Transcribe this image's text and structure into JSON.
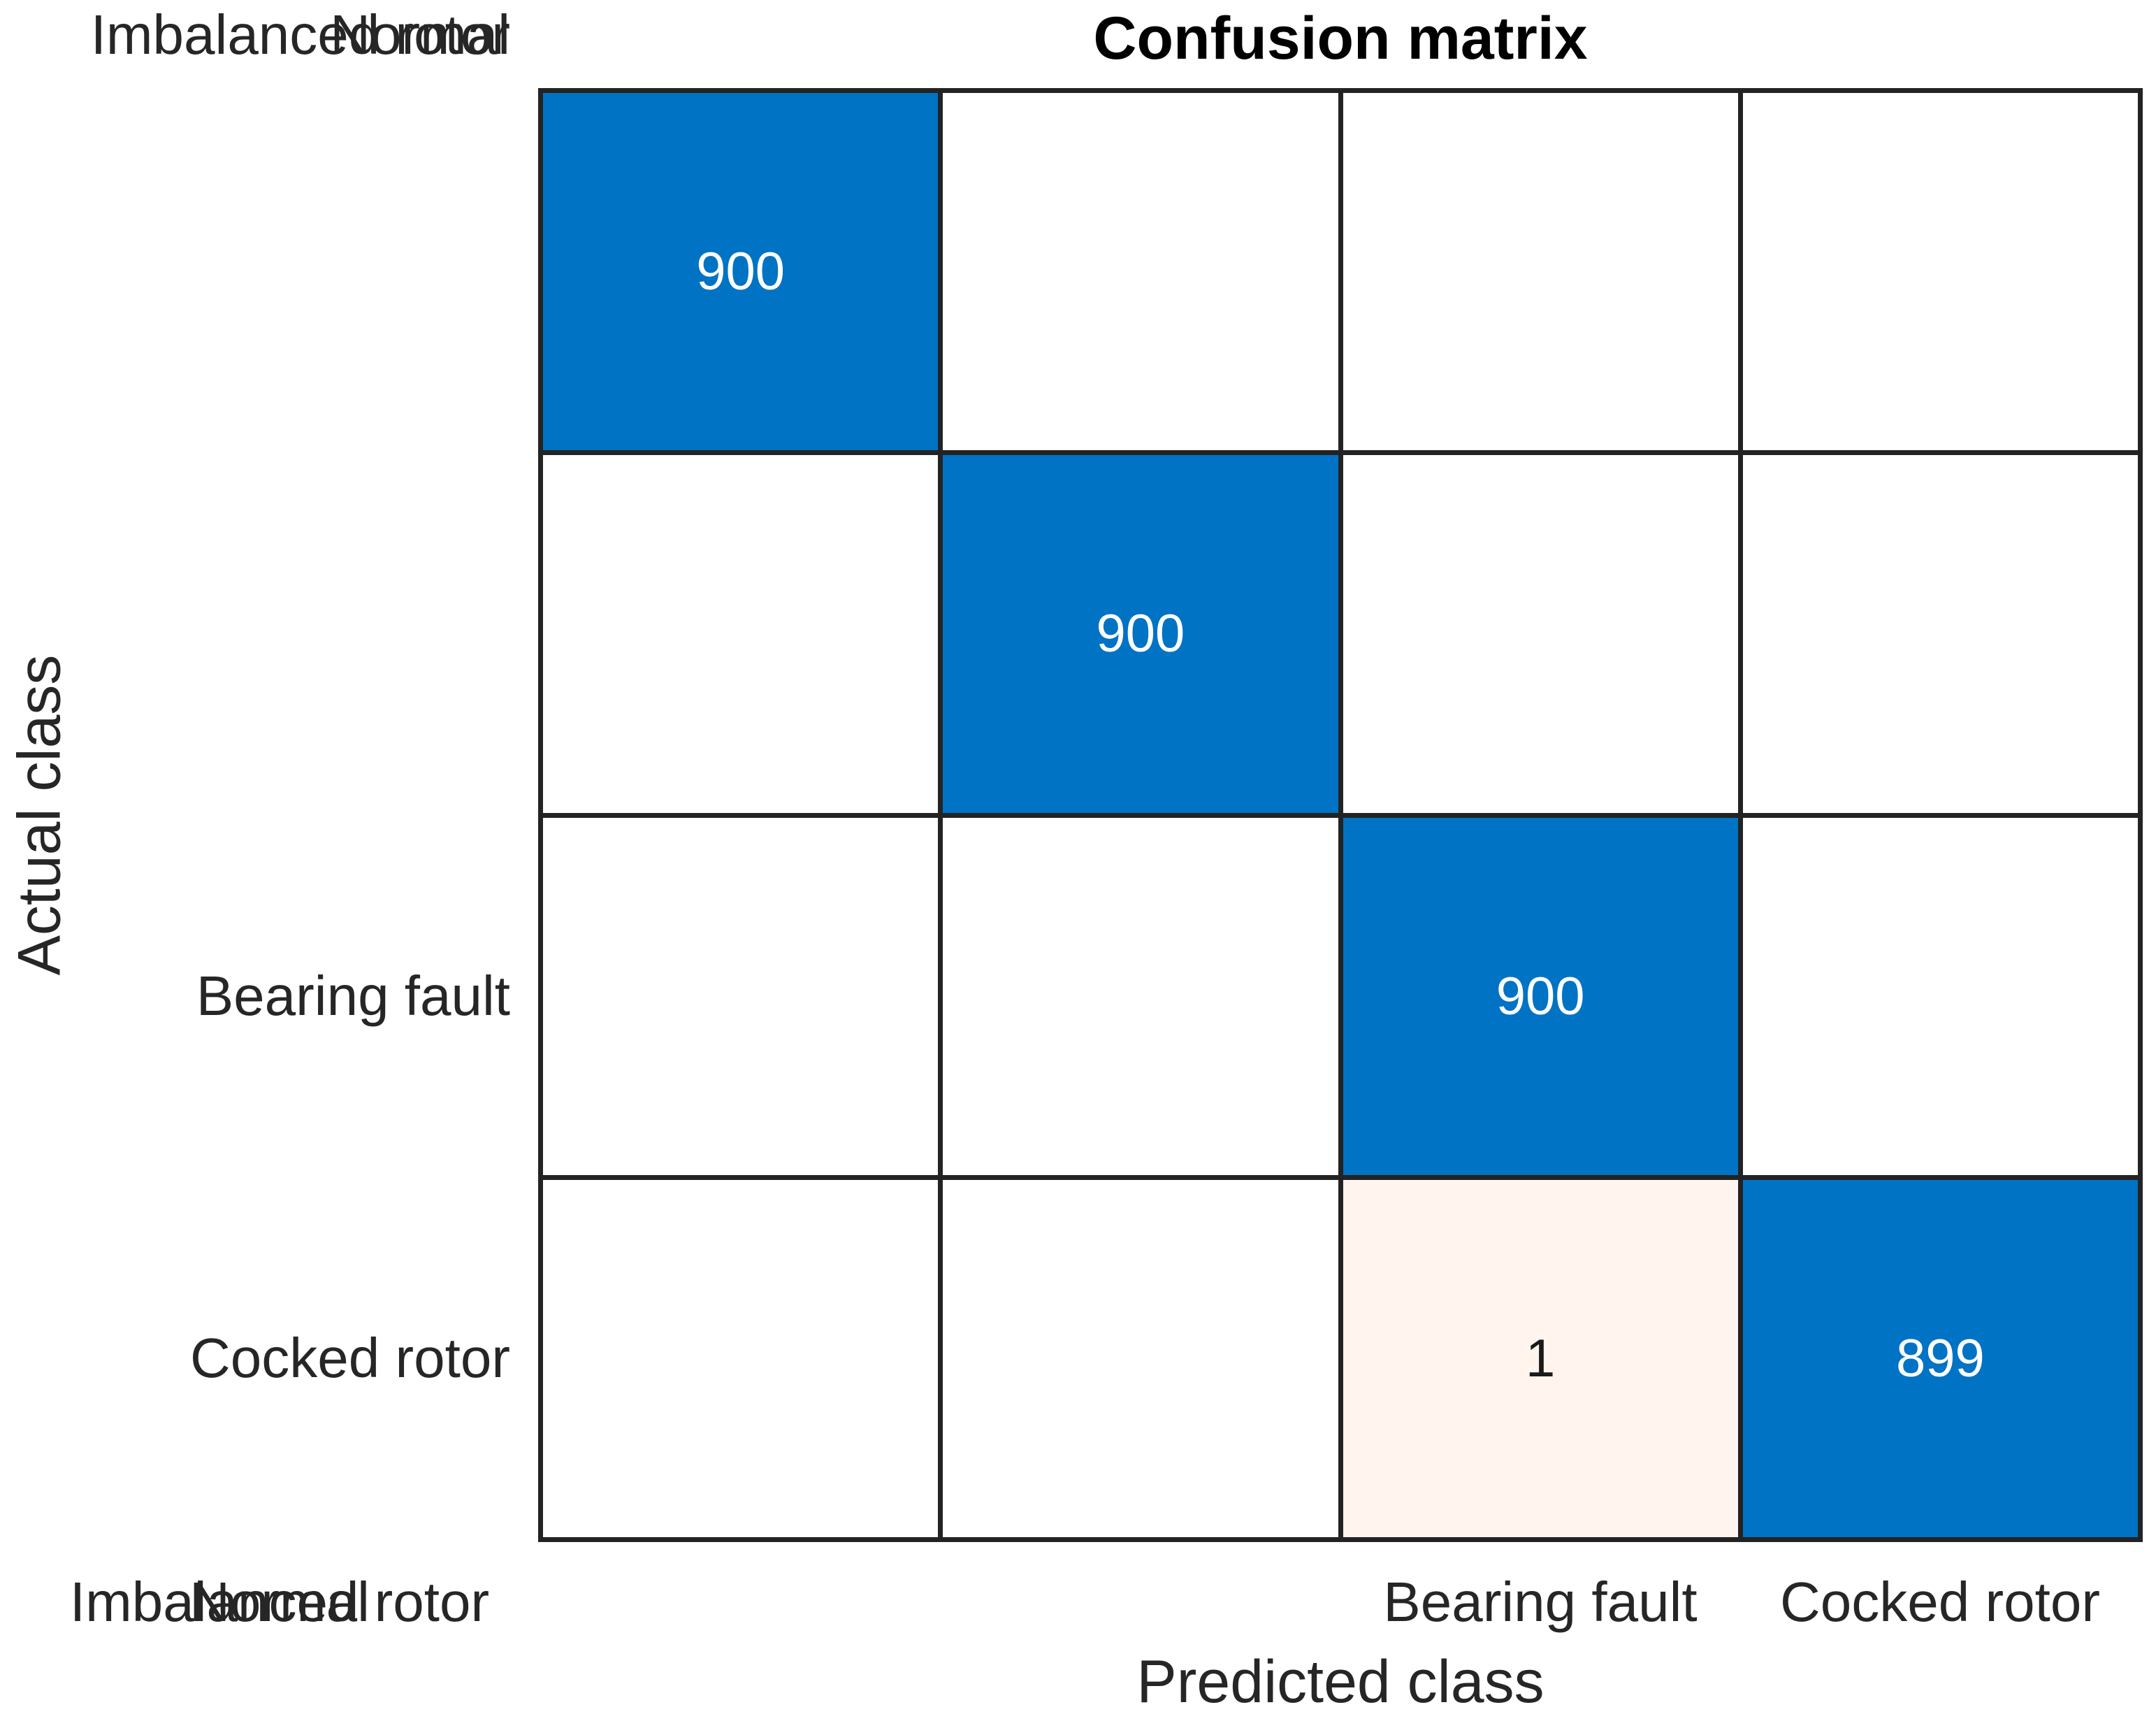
{
  "title": "Confusion matrix",
  "axes": {
    "x_label": "Predicted class",
    "y_label": "Actual class"
  },
  "classes": [
    "Bearing fault",
    "Cocked rotor",
    "Imbalanced rotor",
    "Normal"
  ],
  "cells": [
    {
      "label": "900",
      "type": "diagonal"
    },
    {
      "label": "",
      "type": "empty"
    },
    {
      "label": "",
      "type": "empty"
    },
    {
      "label": "",
      "type": "empty"
    },
    {
      "label": "",
      "type": "empty"
    },
    {
      "label": "900",
      "type": "diagonal"
    },
    {
      "label": "",
      "type": "empty"
    },
    {
      "label": "",
      "type": "empty"
    },
    {
      "label": "",
      "type": "empty"
    },
    {
      "label": "",
      "type": "empty"
    },
    {
      "label": "900",
      "type": "diagonal"
    },
    {
      "label": "",
      "type": "empty"
    },
    {
      "label": "",
      "type": "empty"
    },
    {
      "label": "",
      "type": "empty"
    },
    {
      "label": "1",
      "type": "miss"
    },
    {
      "label": "899",
      "type": "diagonal"
    }
  ],
  "colors": {
    "diagonal": "#0073c4",
    "off_diagonal_low": "#fff4ee",
    "empty": "#ffffff",
    "grid": "#232323",
    "text_on_diagonal": "#ffffff",
    "text_on_offdiag": "#1a1a1a",
    "label_text": "#262626",
    "title_text": "#000000"
  },
  "chart_data": {
    "type": "heatmap",
    "title": "Confusion matrix",
    "xlabel": "Predicted class",
    "ylabel": "Actual class",
    "x_categories": [
      "Bearing fault",
      "Cocked rotor",
      "Imbalanced rotor",
      "Normal"
    ],
    "y_categories": [
      "Bearing fault",
      "Cocked rotor",
      "Imbalanced rotor",
      "Normal"
    ],
    "matrix": [
      [
        900,
        0,
        0,
        0
      ],
      [
        0,
        900,
        0,
        0
      ],
      [
        0,
        0,
        900,
        0
      ],
      [
        0,
        0,
        1,
        899
      ]
    ],
    "zero_cells_shown_blank": true,
    "legend_position": "none",
    "grid": true
  }
}
